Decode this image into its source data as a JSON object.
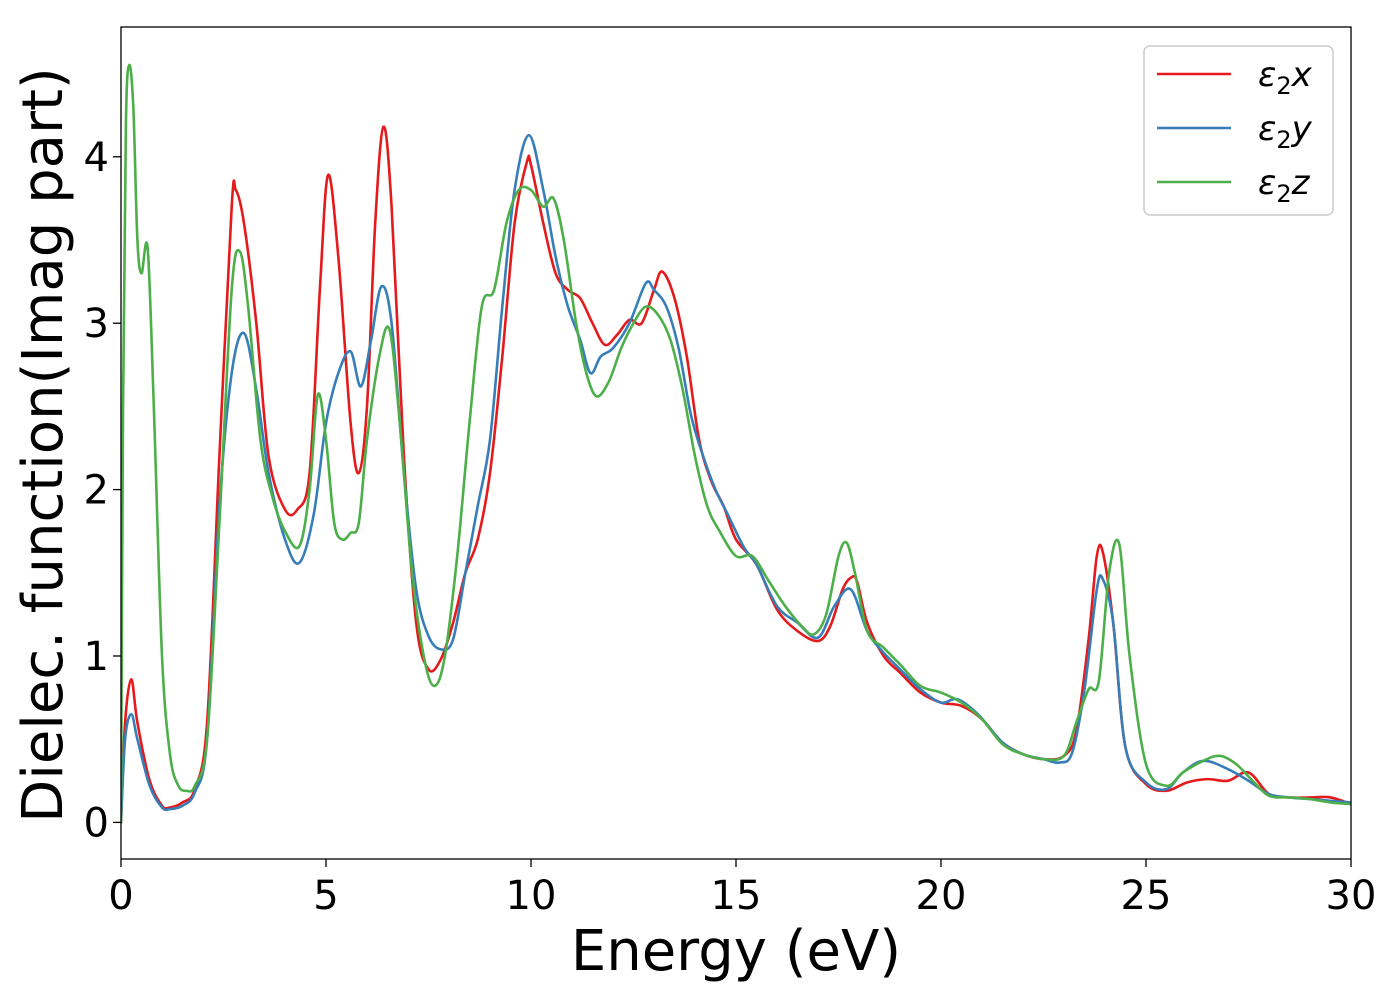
{
  "chart_data": {
    "type": "line",
    "xlabel": "Energy (eV)",
    "ylabel": "Dielec. function(Imag part)",
    "xlim": [
      0,
      30
    ],
    "ylim": [
      -0.22,
      4.78
    ],
    "xticks": [
      "0",
      "5",
      "10",
      "15",
      "20",
      "25",
      "30"
    ],
    "yticks": [
      "0",
      "1",
      "2",
      "3",
      "4"
    ],
    "grid": false,
    "legend_position": "top-right",
    "series": [
      {
        "name": "ε2x",
        "legend_parts": {
          "base": "ε",
          "sub": "2",
          "axis": "x"
        },
        "color": "#e41a1c",
        "x": [
          0,
          0.1,
          0.25,
          0.4,
          0.7,
          1.0,
          1.2,
          1.5,
          1.8,
          2.1,
          2.4,
          2.7,
          2.8,
          3.0,
          3.3,
          3.6,
          4.0,
          4.3,
          4.6,
          4.85,
          5.05,
          5.3,
          5.6,
          5.8,
          6.0,
          6.2,
          6.4,
          6.6,
          6.9,
          7.2,
          7.5,
          7.8,
          8.1,
          8.4,
          8.7,
          9.0,
          9.3,
          9.6,
          9.9,
          10.0,
          10.3,
          10.6,
          10.9,
          11.2,
          11.5,
          11.8,
          12.1,
          12.4,
          12.7,
          13.0,
          13.2,
          13.5,
          13.8,
          14.1,
          14.4,
          14.7,
          15.0,
          15.5,
          16.0,
          16.5,
          17.0,
          17.3,
          17.6,
          17.8,
          17.95,
          18.2,
          18.6,
          19.0,
          19.5,
          20.0,
          20.5,
          21.0,
          21.5,
          22.0,
          22.5,
          23.0,
          23.3,
          23.6,
          23.8,
          23.95,
          24.2,
          24.5,
          25.0,
          25.5,
          26.0,
          26.5,
          27.0,
          27.5,
          28.0,
          28.5,
          29.0,
          29.5,
          30.0
        ],
        "y": [
          0,
          0.6,
          0.86,
          0.6,
          0.25,
          0.1,
          0.09,
          0.12,
          0.2,
          0.6,
          2.2,
          3.7,
          3.8,
          3.6,
          3.0,
          2.2,
          1.88,
          1.88,
          2.1,
          3.2,
          3.89,
          3.4,
          2.4,
          2.1,
          2.5,
          3.6,
          4.18,
          3.7,
          2.2,
          1.2,
          0.92,
          0.98,
          1.2,
          1.5,
          1.7,
          2.1,
          2.8,
          3.6,
          3.97,
          3.95,
          3.6,
          3.3,
          3.2,
          3.15,
          3.0,
          2.87,
          2.93,
          3.02,
          3.0,
          3.2,
          3.31,
          3.15,
          2.8,
          2.3,
          2.05,
          1.9,
          1.7,
          1.55,
          1.28,
          1.15,
          1.09,
          1.18,
          1.4,
          1.47,
          1.45,
          1.2,
          1.0,
          0.9,
          0.78,
          0.72,
          0.7,
          0.62,
          0.48,
          0.41,
          0.38,
          0.4,
          0.55,
          1.1,
          1.6,
          1.62,
          1.2,
          0.45,
          0.23,
          0.19,
          0.24,
          0.26,
          0.25,
          0.3,
          0.17,
          0.15,
          0.15,
          0.15,
          0.11
        ]
      },
      {
        "name": "ε2y",
        "legend_parts": {
          "base": "ε",
          "sub": "2",
          "axis": "y"
        },
        "color": "#377eb8",
        "x": [
          0,
          0.1,
          0.25,
          0.4,
          0.7,
          1.0,
          1.2,
          1.5,
          1.8,
          2.1,
          2.4,
          2.7,
          3.0,
          3.3,
          3.6,
          4.0,
          4.35,
          4.7,
          5.0,
          5.3,
          5.6,
          5.85,
          6.1,
          6.35,
          6.6,
          6.9,
          7.2,
          7.5,
          7.8,
          8.1,
          8.4,
          8.7,
          9.0,
          9.3,
          9.6,
          9.95,
          10.3,
          10.6,
          10.9,
          11.2,
          11.45,
          11.7,
          12.0,
          12.4,
          12.8,
          13.0,
          13.3,
          13.6,
          13.9,
          14.2,
          14.5,
          14.8,
          15.2,
          15.5,
          16.0,
          16.5,
          17.0,
          17.4,
          17.8,
          18.2,
          18.6,
          19.0,
          19.5,
          20.0,
          20.4,
          20.9,
          21.5,
          22.0,
          22.5,
          22.9,
          23.2,
          23.5,
          23.8,
          23.95,
          24.2,
          24.5,
          25.0,
          25.5,
          25.9,
          26.4,
          27.0,
          27.5,
          28.0,
          28.5,
          29.0,
          29.5,
          30.0
        ],
        "y": [
          0,
          0.5,
          0.65,
          0.5,
          0.22,
          0.09,
          0.08,
          0.1,
          0.18,
          0.5,
          1.9,
          2.7,
          2.94,
          2.6,
          2.1,
          1.7,
          1.56,
          1.85,
          2.4,
          2.7,
          2.83,
          2.62,
          2.9,
          3.22,
          3.0,
          2.1,
          1.4,
          1.12,
          1.04,
          1.1,
          1.5,
          1.9,
          2.3,
          3.1,
          3.8,
          4.13,
          3.8,
          3.4,
          3.1,
          2.9,
          2.7,
          2.8,
          2.85,
          3.0,
          3.24,
          3.2,
          3.1,
          2.85,
          2.45,
          2.2,
          2.0,
          1.85,
          1.65,
          1.55,
          1.3,
          1.2,
          1.11,
          1.3,
          1.4,
          1.15,
          1.02,
          0.92,
          0.8,
          0.72,
          0.74,
          0.65,
          0.48,
          0.41,
          0.38,
          0.36,
          0.42,
          0.8,
          1.4,
          1.46,
          1.2,
          0.45,
          0.24,
          0.2,
          0.3,
          0.37,
          0.32,
          0.25,
          0.17,
          0.15,
          0.14,
          0.13,
          0.12
        ]
      },
      {
        "name": "ε2z",
        "legend_parts": {
          "base": "ε",
          "sub": "2",
          "axis": "z"
        },
        "color": "#4daf4a",
        "x": [
          0,
          0.05,
          0.12,
          0.2,
          0.3,
          0.4,
          0.5,
          0.65,
          0.8,
          1.0,
          1.2,
          1.4,
          1.6,
          1.8,
          2.1,
          2.4,
          2.7,
          2.9,
          3.1,
          3.4,
          3.7,
          4.0,
          4.35,
          4.6,
          4.8,
          5.0,
          5.2,
          5.4,
          5.6,
          5.8,
          6.0,
          6.3,
          6.55,
          6.8,
          7.1,
          7.4,
          7.65,
          7.9,
          8.2,
          8.5,
          8.8,
          9.1,
          9.4,
          9.7,
          10.0,
          10.3,
          10.55,
          10.8,
          11.1,
          11.35,
          11.6,
          11.9,
          12.2,
          12.5,
          12.8,
          13.1,
          13.4,
          13.7,
          14.0,
          14.3,
          14.6,
          15.0,
          15.4,
          15.8,
          16.2,
          16.6,
          16.9,
          17.2,
          17.5,
          17.7,
          17.9,
          18.2,
          18.6,
          19.0,
          19.5,
          20.0,
          20.5,
          21.0,
          21.5,
          22.0,
          22.5,
          23.0,
          23.3,
          23.6,
          23.85,
          24.1,
          24.35,
          24.6,
          25.0,
          25.5,
          25.9,
          26.4,
          26.8,
          27.2,
          27.6,
          28.0,
          28.5,
          29.0,
          29.5,
          30.0
        ],
        "y": [
          0,
          2.5,
          4.2,
          4.55,
          4.3,
          3.5,
          3.3,
          3.45,
          2.5,
          1.0,
          0.4,
          0.22,
          0.19,
          0.22,
          0.5,
          1.8,
          3.2,
          3.43,
          3.1,
          2.3,
          1.95,
          1.75,
          1.66,
          2.0,
          2.57,
          2.3,
          1.8,
          1.7,
          1.74,
          1.8,
          2.3,
          2.8,
          2.96,
          2.4,
          1.5,
          0.98,
          0.82,
          1.0,
          1.6,
          2.4,
          3.1,
          3.2,
          3.6,
          3.8,
          3.8,
          3.7,
          3.75,
          3.5,
          3.0,
          2.7,
          2.56,
          2.65,
          2.85,
          3.0,
          3.1,
          3.05,
          2.9,
          2.6,
          2.2,
          1.9,
          1.75,
          1.6,
          1.6,
          1.45,
          1.3,
          1.18,
          1.13,
          1.25,
          1.6,
          1.68,
          1.5,
          1.15,
          1.05,
          0.95,
          0.82,
          0.78,
          0.72,
          0.62,
          0.47,
          0.41,
          0.38,
          0.4,
          0.6,
          0.8,
          0.85,
          1.5,
          1.67,
          1.0,
          0.35,
          0.22,
          0.3,
          0.37,
          0.4,
          0.35,
          0.25,
          0.16,
          0.15,
          0.14,
          0.12,
          0.11
        ]
      }
    ]
  }
}
